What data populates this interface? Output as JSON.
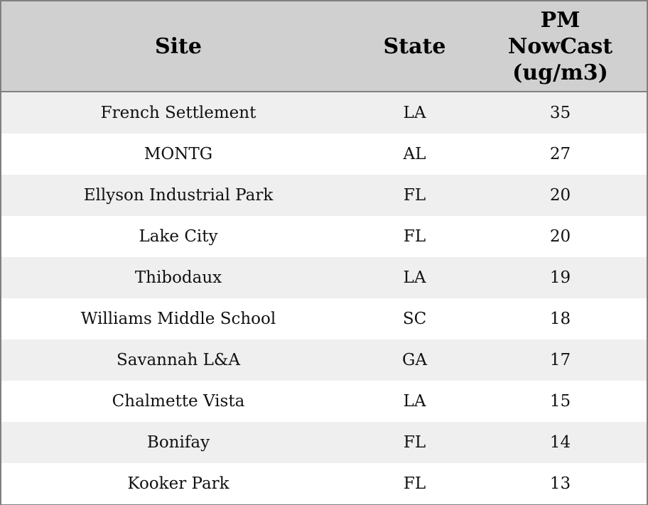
{
  "table": {
    "header": [
      "Site",
      "State",
      "PM NowCast (ug/m3)"
    ],
    "rows": [
      [
        "French Settlement",
        "LA",
        35
      ],
      [
        "MONTG",
        "AL",
        27
      ],
      [
        "Ellyson Industrial Park",
        "FL",
        20
      ],
      [
        "Lake City",
        "FL",
        20
      ],
      [
        "Thibodaux",
        "LA",
        19
      ],
      [
        "Williams Middle School",
        "SC",
        18
      ],
      [
        "Savannah L&A",
        "GA",
        17
      ],
      [
        "Chalmette Vista",
        "LA",
        15
      ],
      [
        "Bonifay",
        "FL",
        14
      ],
      [
        "Kooker Park",
        "FL",
        13
      ]
    ]
  }
}
